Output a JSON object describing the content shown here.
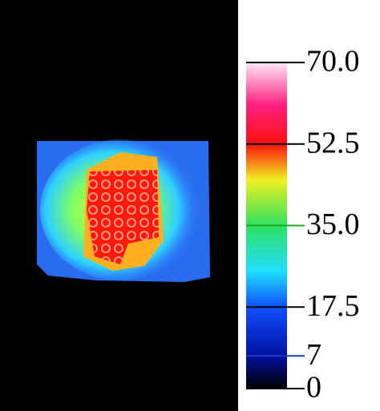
{
  "chart_data": {
    "type": "colorbar",
    "ylim": [
      0,
      70
    ],
    "yticks": [
      0,
      7,
      17.5,
      {
        "value": 35,
        "label": "35.0"
      },
      52.5,
      {
        "value": 70,
        "label": "70.0"
      }
    ],
    "tick_colors": [
      "#000000",
      "#1a3cc8",
      "#000000",
      "#1faa1f",
      "#000000",
      "#000000"
    ]
  }
}
